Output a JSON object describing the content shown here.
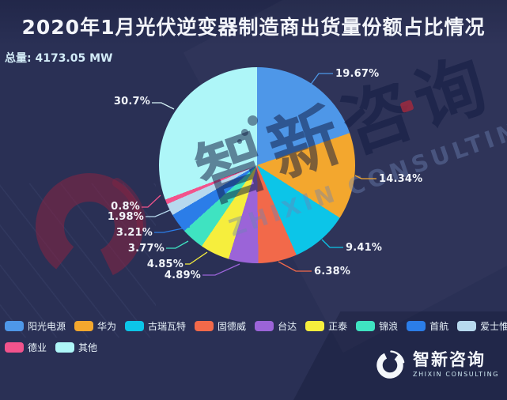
{
  "header": {
    "total_text": "总量: 4173.05 MW"
  },
  "chart_data": {
    "type": "pie",
    "title": "2020年1月光伏逆变器制造商出货量份额占比情况",
    "total_label": "总量",
    "total_value": "4173.05 MW",
    "unit": "%",
    "legend_position": "bottom",
    "slices": [
      {
        "name": "阳光电源",
        "value": 19.67,
        "label": "19.67%",
        "color": "#4e97e8"
      },
      {
        "name": "华为",
        "value": 14.34,
        "label": "14.34%",
        "color": "#f3a72e"
      },
      {
        "name": "古瑞瓦特",
        "value": 9.41,
        "label": "9.41%",
        "color": "#0cc5e8"
      },
      {
        "name": "固德威",
        "value": 6.38,
        "label": "6.38%",
        "color": "#f2694a"
      },
      {
        "name": "台达",
        "value": 4.89,
        "label": "4.89%",
        "color": "#9b64d8"
      },
      {
        "name": "正泰",
        "value": 4.85,
        "label": "4.85%",
        "color": "#f6ee3d"
      },
      {
        "name": "锦浪",
        "value": 3.77,
        "label": "3.77%",
        "color": "#3fe3c1"
      },
      {
        "name": "首航",
        "value": 3.21,
        "label": "3.21%",
        "color": "#2b7de8"
      },
      {
        "name": "爱士惟",
        "value": 1.98,
        "label": "1.98%",
        "color": "#b7d9ee"
      },
      {
        "name": "德业",
        "value": 0.8,
        "label": "0.8%",
        "color": "#f2538c"
      },
      {
        "name": "其他",
        "value": 30.7,
        "label": "30.7%",
        "color": "#aef6f8"
      }
    ]
  },
  "watermark": {
    "cn": "智新咨询",
    "en": "ZHIXIN CONSULTING",
    "accent_red": "#9e2a3e"
  },
  "brand": {
    "cn": "智新咨询",
    "en": "ZHIXIN CONSULTING"
  },
  "colors": {
    "background": "#2a3055",
    "title_text": "#f3f5fa",
    "total_text": "#d3ecf8",
    "label_text": "#f2f5fa"
  }
}
